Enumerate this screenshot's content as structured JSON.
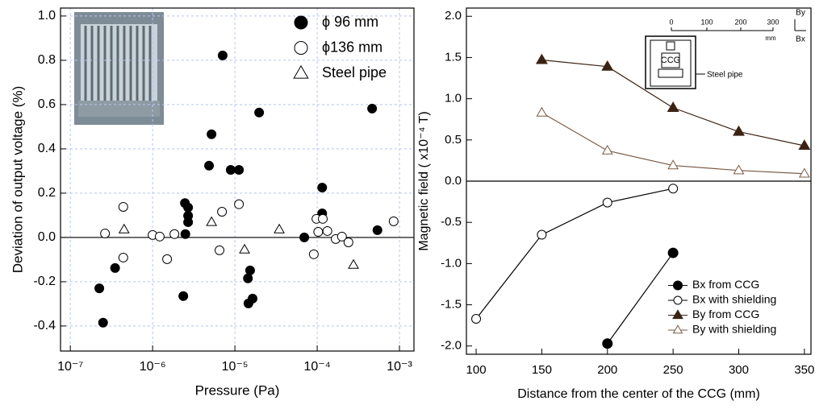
{
  "chart_data": [
    {
      "type": "scatter",
      "xscale": "log",
      "grid": true,
      "zero_line": true,
      "legend": "upper right",
      "xlabel": "Pressure (Pa)",
      "ylabel": "Deviation of output voltage (%)",
      "xlim": [
        7.6e-08,
        0.0015
      ],
      "ylim": [
        -0.513,
        1.036
      ],
      "xticks": [
        {
          "value": 1e-07,
          "label": "10⁻⁷"
        },
        {
          "value": 1e-06,
          "label": "10⁻⁶"
        },
        {
          "value": 1e-05,
          "label": "10⁻⁵"
        },
        {
          "value": 0.0001,
          "label": "10⁻⁴"
        },
        {
          "value": 0.001,
          "label": "10⁻³"
        }
      ],
      "yticks": [
        -0.4,
        -0.2,
        {
          "value": 0,
          "label": "0.0"
        },
        0.2,
        0.4,
        0.6,
        0.8,
        {
          "value": 1,
          "label": "1.0"
        }
      ],
      "series": [
        {
          "name": "ϕ 96 mm",
          "marker": "circle",
          "filled": true,
          "color": "#000000",
          "x": [
            2.25e-07,
            2.5e-07,
            3.5e-07,
            2.47e-06,
            2.7e-06,
            2.7e-06,
            2.7e-06,
            2.5e-06,
            2.36e-06,
            4.85e-06,
            5.2e-06,
            7.1e-06,
            8.9e-06,
            1.12e-05,
            1.97e-05,
            1.44e-05,
            1.53e-05,
            1.46e-05,
            1.64e-05,
            6.97e-05,
            0.000115,
            0.000115,
            0.000465,
            0.00054
          ],
          "values": [
            -0.23,
            -0.385,
            -0.138,
            0.155,
            0.135,
            0.098,
            0.069,
            0.015,
            -0.265,
            0.324,
            0.466,
            0.822,
            0.305,
            0.305,
            0.564,
            -0.185,
            -0.149,
            -0.298,
            -0.276,
            0.0,
            0.225,
            0.109,
            0.582,
            0.033
          ]
        },
        {
          "name": "ϕ136 mm",
          "marker": "circle",
          "filled": false,
          "color": "#000000",
          "x": [
            2.64e-07,
            4.4e-07,
            4.4e-07,
            1e-06,
            1.22e-06,
            1.5e-06,
            1.84e-06,
            6.97e-06,
            6.5e-06,
            1.12e-05,
            9.1e-05,
            9.8e-05,
            0.000117,
            0.000103,
            0.000133,
            0.000168,
            0.0002,
            0.00024,
            0.00085
          ],
          "values": [
            0.018,
            0.138,
            -0.091,
            0.011,
            0.004,
            -0.098,
            0.015,
            0.116,
            -0.058,
            0.15,
            -0.076,
            0.084,
            0.084,
            0.025,
            0.029,
            -0.007,
            0.004,
            -0.022,
            0.073
          ]
        },
        {
          "name": "Steel pipe",
          "marker": "triangle",
          "filled": false,
          "color": "#000000",
          "x": [
            4.5e-07,
            5.2e-06,
            1.31e-05,
            3.46e-05,
            0.000276
          ],
          "values": [
            0.036,
            0.069,
            -0.055,
            0.036,
            -0.124
          ]
        }
      ]
    },
    {
      "type": "line",
      "zero_line": true,
      "legend": "lower right",
      "xlabel": "Distance from the center of the CCG (mm)",
      "ylabel": "Magnetic field ( x10⁻⁴  T)",
      "xlim": [
        92.6,
        355
      ],
      "ylim": [
        -2.1,
        2.1
      ],
      "xticks": [
        100,
        150,
        200,
        250,
        300,
        350
      ],
      "yticks": [
        {
          "value": -2,
          "label": "-2.0"
        },
        -1.5,
        {
          "value": -1,
          "label": "-1.0"
        },
        -0.5,
        {
          "value": 0,
          "label": "0.0"
        },
        0.5,
        {
          "value": 1,
          "label": "1.0"
        },
        1.5,
        {
          "value": 2,
          "label": "2.0"
        }
      ],
      "x": [
        100,
        150,
        200,
        250,
        300,
        350
      ],
      "series": [
        {
          "name": "Bx from CCG",
          "marker": "circle",
          "filled": true,
          "color": "#000000",
          "values": [
            null,
            null,
            -1.97,
            -0.87,
            null,
            null
          ]
        },
        {
          "name": "Bx with shielding",
          "marker": "circle",
          "filled": false,
          "color": "#000000",
          "values": [
            -1.67,
            -0.65,
            -0.26,
            -0.09,
            null,
            null
          ]
        },
        {
          "name": "By from CCG",
          "marker": "triangle",
          "filled": true,
          "color": "#3b2314",
          "values": [
            null,
            1.47,
            1.39,
            0.89,
            0.6,
            0.43
          ]
        },
        {
          "name": "By with shielding",
          "marker": "triangle",
          "filled": false,
          "color": "#7a5a45",
          "values": [
            null,
            0.83,
            0.37,
            0.19,
            0.13,
            0.09
          ]
        }
      ],
      "inset": {
        "scale": [
          "0",
          "100",
          "200",
          "300"
        ],
        "unit": "mm",
        "by": "By",
        "bx": "Bx",
        "device": "CCG",
        "pipe": "Steel pipe"
      }
    }
  ]
}
